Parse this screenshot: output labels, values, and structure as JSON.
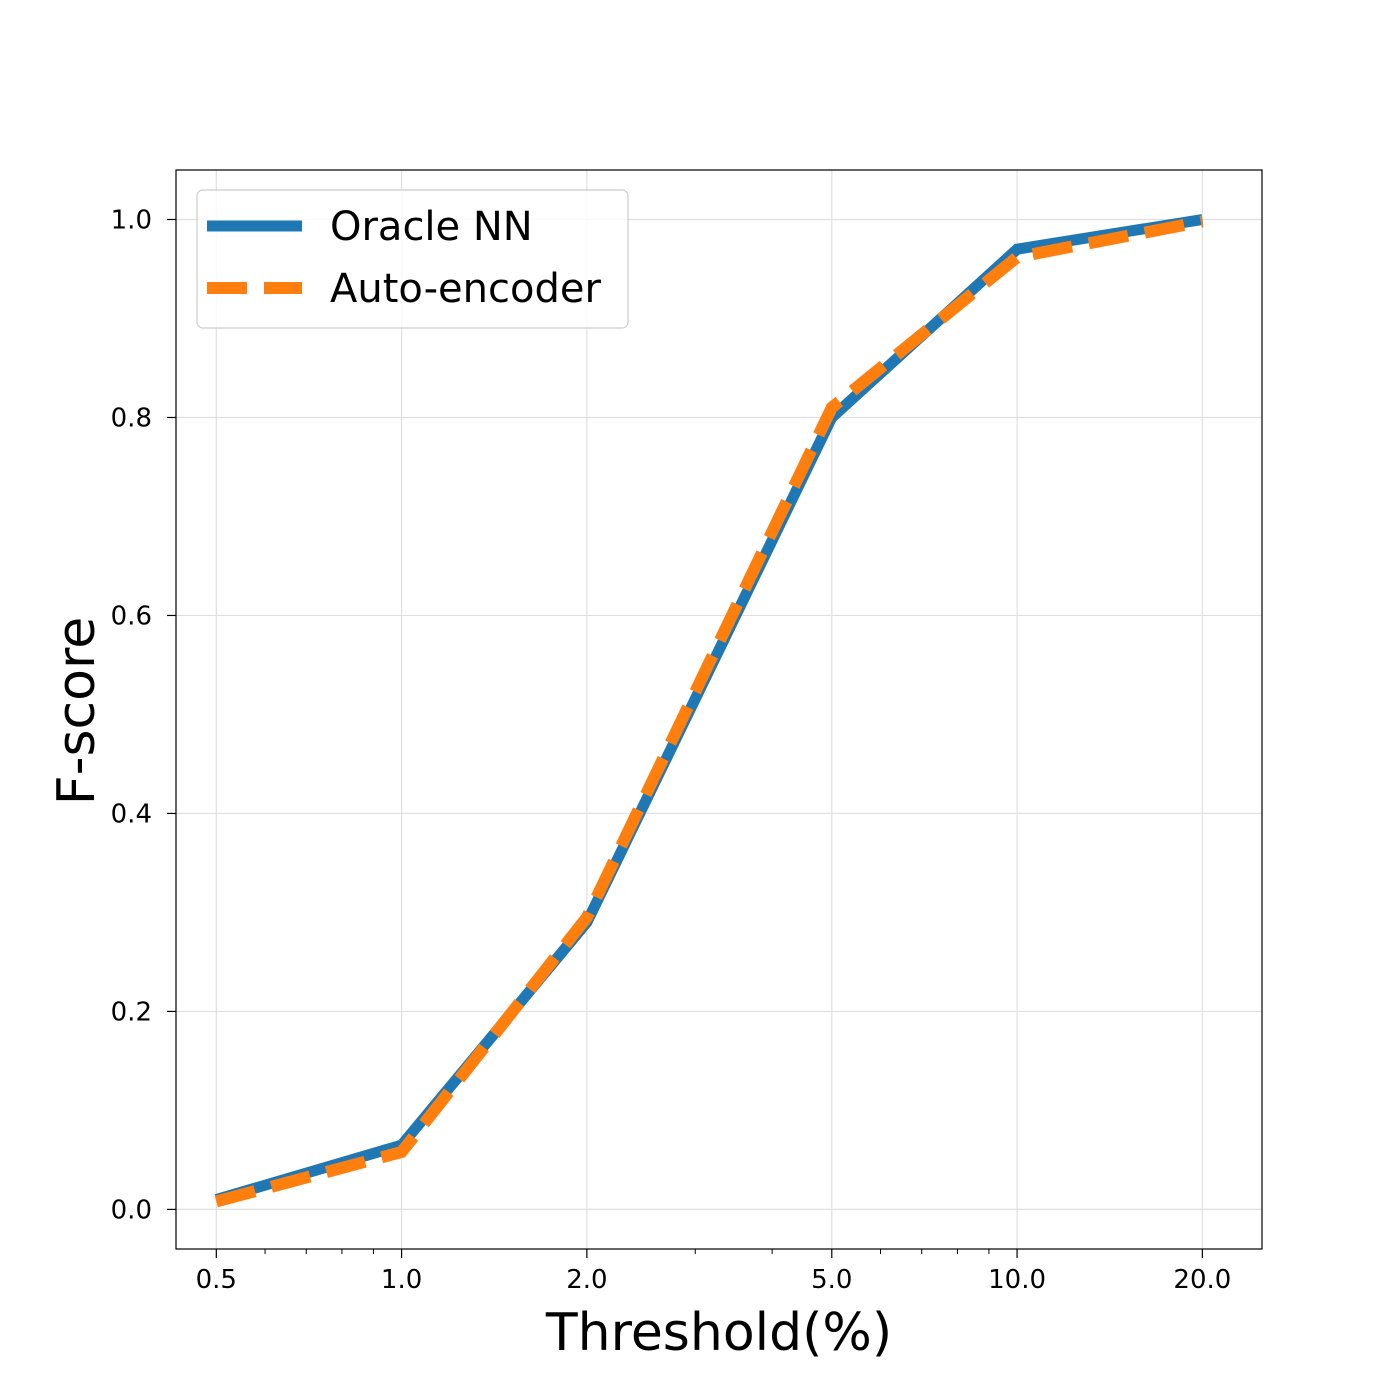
{
  "chart_data": {
    "type": "line",
    "xlabel": "Threshold(%)",
    "ylabel": "F-score",
    "xscale": "log",
    "xlim": [
      0.43,
      25
    ],
    "ylim": [
      -0.04,
      1.05
    ],
    "xticks": [
      0.5,
      1.0,
      2.0,
      5.0,
      10.0,
      20.0
    ],
    "xtick_labels": [
      "0.5",
      "1.0",
      "2.0",
      "5.0",
      "10.0",
      "20.0"
    ],
    "yticks": [
      0.0,
      0.2,
      0.4,
      0.6,
      0.8,
      1.0
    ],
    "ytick_labels": [
      "0.0",
      "0.2",
      "0.4",
      "0.6",
      "0.8",
      "1.0"
    ],
    "grid": true,
    "legend_position": "top-left",
    "x": [
      0.5,
      1.0,
      2.0,
      5.0,
      10.0,
      20.0
    ],
    "series": [
      {
        "name": "Oracle NN",
        "values": [
          0.01,
          0.065,
          0.29,
          0.8,
          0.97,
          1.0
        ],
        "color": "#1f77b4",
        "style": "solid"
      },
      {
        "name": "Auto-encoder",
        "values": [
          0.008,
          0.058,
          0.295,
          0.81,
          0.962,
          0.998
        ],
        "color": "#ff7f0e",
        "style": "dashed"
      }
    ]
  }
}
